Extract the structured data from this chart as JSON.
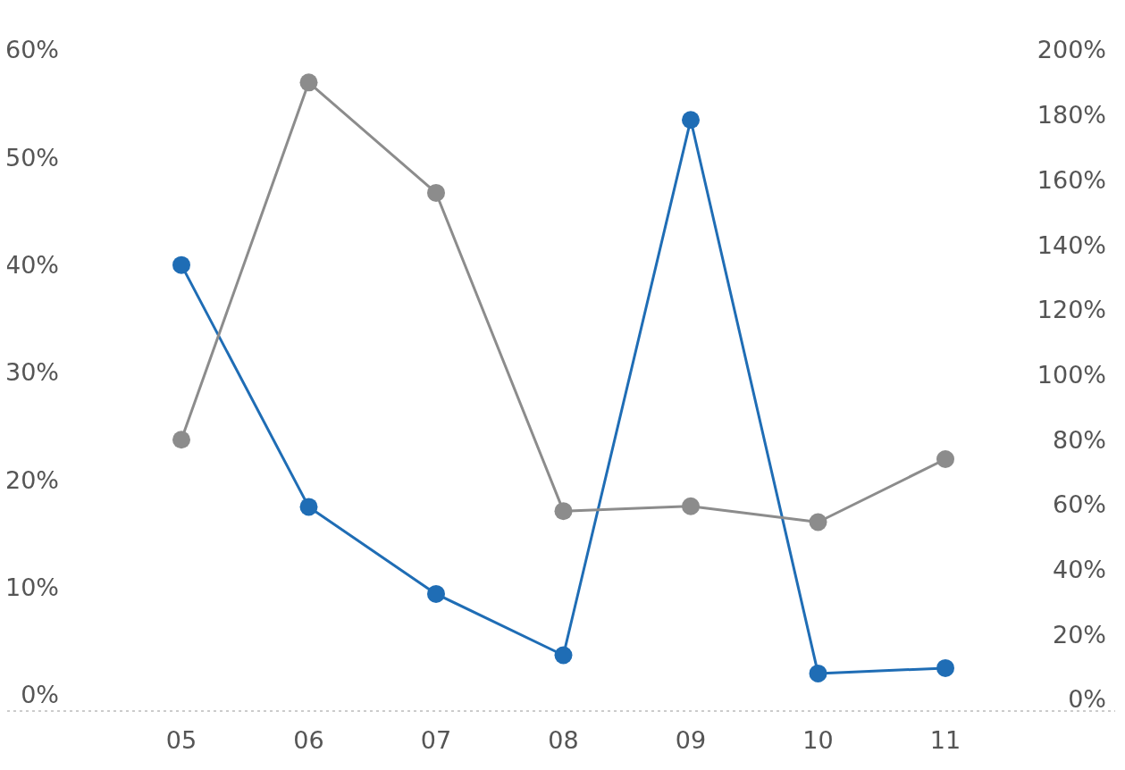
{
  "chart_data": {
    "type": "line",
    "categories": [
      "05",
      "06",
      "07",
      "08",
      "09",
      "10",
      "11"
    ],
    "series": [
      {
        "color": "#1f6db5",
        "values": [
          40,
          17.5,
          9.4,
          3.7,
          53.5,
          2.0,
          2.5
        ]
      },
      {
        "color": "#8c8c8c",
        "axis": "y2",
        "values": [
          80,
          190,
          156,
          58,
          59.5,
          54.6,
          74
        ]
      }
    ],
    "ylim": [
      0,
      60
    ],
    "yticks": [
      {
        "value": 0,
        "label": "0%"
      },
      {
        "value": 10,
        "label": "10%"
      },
      {
        "value": 20,
        "label": "20%"
      },
      {
        "value": 30,
        "label": "30%"
      },
      {
        "value": 40,
        "label": "40%"
      },
      {
        "value": 50,
        "label": "50%"
      },
      {
        "value": 60,
        "label": "60%"
      }
    ],
    "y2lim": [
      0,
      200
    ],
    "y2ticks": [
      {
        "value": 0,
        "label": "0%"
      },
      {
        "value": 20,
        "label": "20%"
      },
      {
        "value": 40,
        "label": "40%"
      },
      {
        "value": 60,
        "label": "60%"
      },
      {
        "value": 80,
        "label": "80%"
      },
      {
        "value": 100,
        "label": "100%"
      },
      {
        "value": 120,
        "label": "120%"
      },
      {
        "value": 140,
        "label": "140%"
      },
      {
        "value": 160,
        "label": "160%"
      },
      {
        "value": 180,
        "label": "180%"
      },
      {
        "value": 200,
        "label": "200%"
      }
    ],
    "marker": "circle",
    "line_style": "solid"
  }
}
